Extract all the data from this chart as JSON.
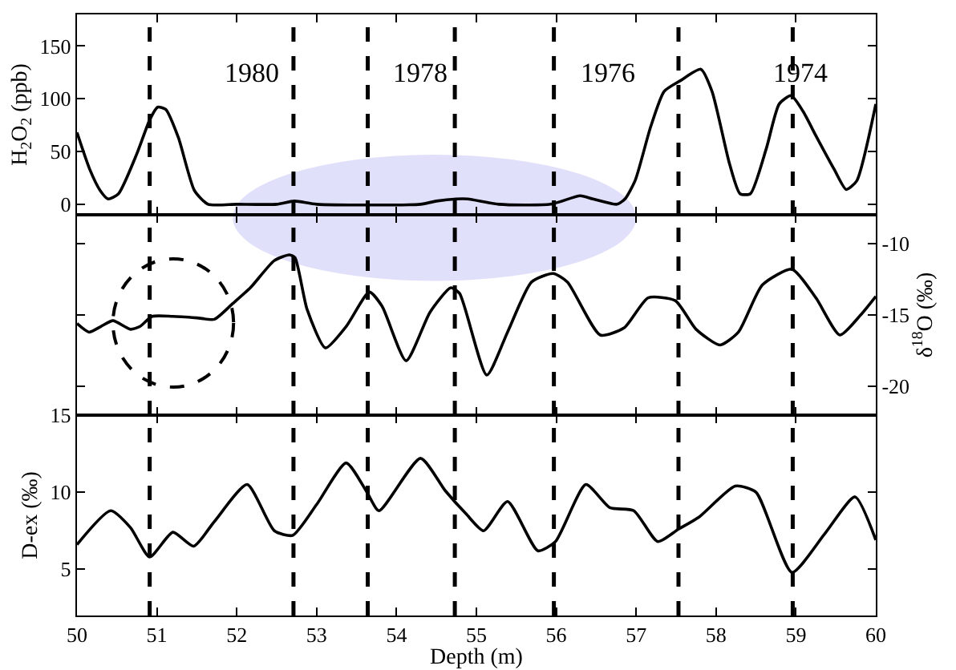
{
  "chart_data": [
    {
      "type": "line",
      "ylabel": "H$_{2}$O$_{2}$ (ppb)",
      "x": [
        50,
        50.16,
        50.29,
        50.39,
        50.52,
        50.75,
        50.91,
        51.01,
        51.11,
        51.27,
        51.47,
        51.64,
        52.0,
        52.5,
        52.72,
        53.0,
        54.3,
        54.5,
        54.75,
        54.89,
        55.28,
        55.93,
        56.3,
        56.46,
        56.76,
        56.86,
        56.99,
        57.18,
        57.35,
        57.55,
        57.81,
        57.95,
        58.17,
        58.3,
        58.43,
        58.63,
        58.79,
        58.94,
        59.09,
        59.25,
        59.48,
        59.63,
        59.76,
        60.0
      ],
      "series": [
        {
          "color": "#000000",
          "values": [
            68,
            33,
            13,
            5,
            10,
            48,
            80,
            92,
            90,
            63,
            13,
            0,
            0,
            0,
            3,
            0,
            0,
            3,
            5,
            5,
            0,
            0,
            8,
            5,
            0,
            5,
            23,
            73,
            107,
            117,
            128,
            107,
            38,
            10,
            10,
            53,
            95,
            103,
            88,
            65,
            33,
            14,
            22,
            95
          ]
        }
      ],
      "xlim": [
        50,
        60
      ],
      "xticks": [
        50,
        51,
        52,
        53,
        54,
        55,
        56,
        57,
        58,
        59,
        60
      ],
      "ylim": [
        -10,
        180
      ],
      "yticks": [
        0,
        50,
        100,
        150
      ],
      "tick_labels": "y",
      "line_style": "solid",
      "marker": "none",
      "annotations": [
        "1980",
        "1978",
        "1976",
        "1974"
      ],
      "ref_lines": [
        {
          "axis": "x",
          "value": 50.91,
          "color": "#000000",
          "line_style": "dashed"
        },
        {
          "axis": "x",
          "value": 52.71,
          "color": "#000000",
          "line_style": "dashed"
        },
        {
          "axis": "x",
          "value": 53.64,
          "color": "#000000",
          "line_style": "dashed"
        },
        {
          "axis": "x",
          "value": 54.73,
          "color": "#000000",
          "line_style": "dashed"
        },
        {
          "axis": "x",
          "value": 55.97,
          "color": "#000000",
          "line_style": "dashed"
        },
        {
          "axis": "x",
          "value": 57.53,
          "color": "#000000",
          "line_style": "dashed"
        },
        {
          "axis": "x",
          "value": 58.96,
          "color": "#000000",
          "line_style": "dashed"
        }
      ]
    },
    {
      "type": "line",
      "y2label": "δ$^{18}$O (‰)",
      "x": [
        50,
        50.15,
        50.3,
        50.45,
        50.67,
        50.79,
        50.94,
        51.2,
        51.5,
        51.72,
        51.95,
        52.17,
        52.47,
        52.66,
        52.73,
        52.88,
        53.11,
        53.37,
        53.66,
        53.82,
        54.12,
        54.42,
        54.68,
        54.79,
        55.13,
        55.39,
        55.69,
        55.96,
        56.14,
        56.55,
        56.85,
        57.15,
        57.49,
        57.75,
        58.05,
        58.28,
        58.58,
        58.95,
        59.25,
        59.55,
        59.81,
        60.0
      ],
      "series": [
        {
          "color": "#000000",
          "axis": "y2",
          "values": [
            -15.6,
            -16.2,
            -15.8,
            -15.4,
            -16.0,
            -15.8,
            -15.1,
            -15.1,
            -15.2,
            -15.3,
            -14.2,
            -13.1,
            -11.2,
            -10.8,
            -11.0,
            -14.6,
            -17.3,
            -15.8,
            -13.4,
            -14.4,
            -18.2,
            -14.8,
            -13.1,
            -13.5,
            -19.2,
            -16.2,
            -12.7,
            -12.1,
            -12.7,
            -16.4,
            -15.9,
            -13.8,
            -14.0,
            -16.0,
            -17.1,
            -16.2,
            -12.9,
            -11.8,
            -13.8,
            -16.4,
            -15.0,
            -13.7
          ]
        }
      ],
      "xlim": [
        50,
        60
      ],
      "xticks": [
        50,
        51,
        52,
        53,
        54,
        55,
        56,
        57,
        58,
        59,
        60
      ],
      "y2lim": [
        -22,
        -8
      ],
      "y2ticks": [
        -10,
        -15,
        -20
      ],
      "tick_labels": "y",
      "line_style": "solid",
      "marker": "none",
      "ref_lines": [
        {
          "axis": "x",
          "value": 50.91,
          "color": "#000000",
          "line_style": "dashed"
        },
        {
          "axis": "x",
          "value": 52.71,
          "color": "#000000",
          "line_style": "dashed"
        },
        {
          "axis": "x",
          "value": 53.64,
          "color": "#000000",
          "line_style": "dashed"
        },
        {
          "axis": "x",
          "value": 54.73,
          "color": "#000000",
          "line_style": "dashed"
        },
        {
          "axis": "x",
          "value": 55.97,
          "color": "#000000",
          "line_style": "dashed"
        },
        {
          "axis": "x",
          "value": 57.53,
          "color": "#000000",
          "line_style": "dashed"
        },
        {
          "axis": "x",
          "value": 58.96,
          "color": "#000000",
          "line_style": "dashed"
        }
      ]
    },
    {
      "type": "line",
      "xlabel": "Depth (m)",
      "ylabel": "D-ex (‰)",
      "x": [
        50,
        50.42,
        50.67,
        50.91,
        51.2,
        51.46,
        51.72,
        52.13,
        52.47,
        52.7,
        53.0,
        53.37,
        53.63,
        53.78,
        54.3,
        54.61,
        54.87,
        55.09,
        55.39,
        55.77,
        55.99,
        56.37,
        56.67,
        56.97,
        57.27,
        57.53,
        57.79,
        58.24,
        58.5,
        58.95,
        59.36,
        59.74,
        60.0
      ],
      "series": [
        {
          "color": "#000000",
          "values": [
            6.6,
            8.8,
            7.7,
            5.8,
            7.4,
            6.5,
            8.1,
            10.5,
            7.5,
            7.2,
            9.2,
            11.9,
            10.0,
            8.8,
            12.2,
            10.1,
            8.6,
            7.5,
            9.4,
            6.2,
            6.8,
            10.5,
            9.0,
            8.8,
            6.8,
            7.6,
            8.4,
            10.4,
            10.0,
            4.8,
            7.3,
            9.7,
            6.9
          ]
        }
      ],
      "xlim": [
        50,
        60
      ],
      "xticks": [
        50,
        51,
        52,
        53,
        54,
        55,
        56,
        57,
        58,
        59,
        60
      ],
      "ylim": [
        2,
        15
      ],
      "yticks": [
        5,
        10,
        15
      ],
      "line_style": "solid",
      "marker": "none",
      "ref_lines": [
        {
          "axis": "x",
          "value": 50.91,
          "color": "#000000",
          "line_style": "dashed"
        },
        {
          "axis": "x",
          "value": 52.71,
          "color": "#000000",
          "line_style": "dashed"
        },
        {
          "axis": "x",
          "value": 53.64,
          "color": "#000000",
          "line_style": "dashed"
        },
        {
          "axis": "x",
          "value": 54.73,
          "color": "#000000",
          "line_style": "dashed"
        },
        {
          "axis": "x",
          "value": 55.97,
          "color": "#000000",
          "line_style": "dashed"
        },
        {
          "axis": "x",
          "value": 57.53,
          "color": "#000000",
          "line_style": "dashed"
        },
        {
          "axis": "x",
          "value": 58.96,
          "color": "#000000",
          "line_style": "dashed"
        }
      ]
    }
  ]
}
